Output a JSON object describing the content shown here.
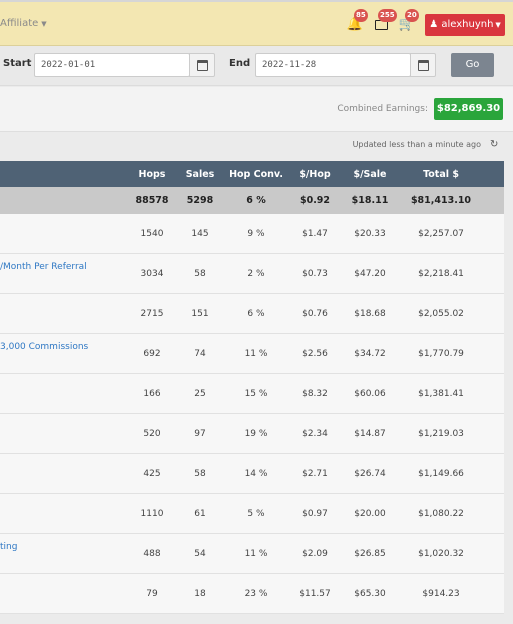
{
  "nav": {
    "affiliate_label": "Affiliate",
    "notifications_count": "85",
    "money_count": "255",
    "cart_count": "20",
    "username": "alexhuynh"
  },
  "filter": {
    "start_label": "Start",
    "start_value": "2022-01-01",
    "end_label": "End",
    "end_value": "2022-11-28",
    "go_label": "Go"
  },
  "earnings": {
    "label": "Combined Earnings:",
    "value": "$82,869.30"
  },
  "updated_text": "Updated less than a minute ago",
  "table": {
    "headers": {
      "hops": "Hops",
      "sales": "Sales",
      "conv": "Hop Conv.",
      "per_hop": "$/Hop",
      "per_sale": "$/Sale",
      "total": "Total $"
    },
    "totals": {
      "hops": "88578",
      "sales": "5298",
      "conv": "6 %",
      "per_hop": "$0.92",
      "per_sale": "$18.11",
      "total": "$81,413.10"
    },
    "rows": [
      {
        "name": "",
        "hops": "1540",
        "sales": "145",
        "conv": "9 %",
        "per_hop": "$1.47",
        "per_sale": "$20.33",
        "total": "$2,257.07"
      },
      {
        "name": "/Month Per Referral",
        "hops": "3034",
        "sales": "58",
        "conv": "2 %",
        "per_hop": "$0.73",
        "per_sale": "$47.20",
        "total": "$2,218.41"
      },
      {
        "name": "",
        "hops": "2715",
        "sales": "151",
        "conv": "6 %",
        "per_hop": "$0.76",
        "per_sale": "$18.68",
        "total": "$2,055.02"
      },
      {
        "name": "3,000 Commissions",
        "hops": "692",
        "sales": "74",
        "conv": "11 %",
        "per_hop": "$2.56",
        "per_sale": "$34.72",
        "total": "$1,770.79"
      },
      {
        "name": "",
        "hops": "166",
        "sales": "25",
        "conv": "15 %",
        "per_hop": "$8.32",
        "per_sale": "$60.06",
        "total": "$1,381.41"
      },
      {
        "name": "",
        "hops": "520",
        "sales": "97",
        "conv": "19 %",
        "per_hop": "$2.34",
        "per_sale": "$14.87",
        "total": "$1,219.03"
      },
      {
        "name": "",
        "hops": "425",
        "sales": "58",
        "conv": "14 %",
        "per_hop": "$2.71",
        "per_sale": "$26.74",
        "total": "$1,149.66"
      },
      {
        "name": "",
        "hops": "1110",
        "sales": "61",
        "conv": "5 %",
        "per_hop": "$0.97",
        "per_sale": "$20.00",
        "total": "$1,080.22"
      },
      {
        "name": "ting",
        "hops": "488",
        "sales": "54",
        "conv": "11 %",
        "per_hop": "$2.09",
        "per_sale": "$26.85",
        "total": "$1,020.32"
      },
      {
        "name": "",
        "hops": "79",
        "sales": "18",
        "conv": "23 %",
        "per_hop": "$11.57",
        "per_sale": "$65.30",
        "total": "$914.23"
      }
    ]
  }
}
